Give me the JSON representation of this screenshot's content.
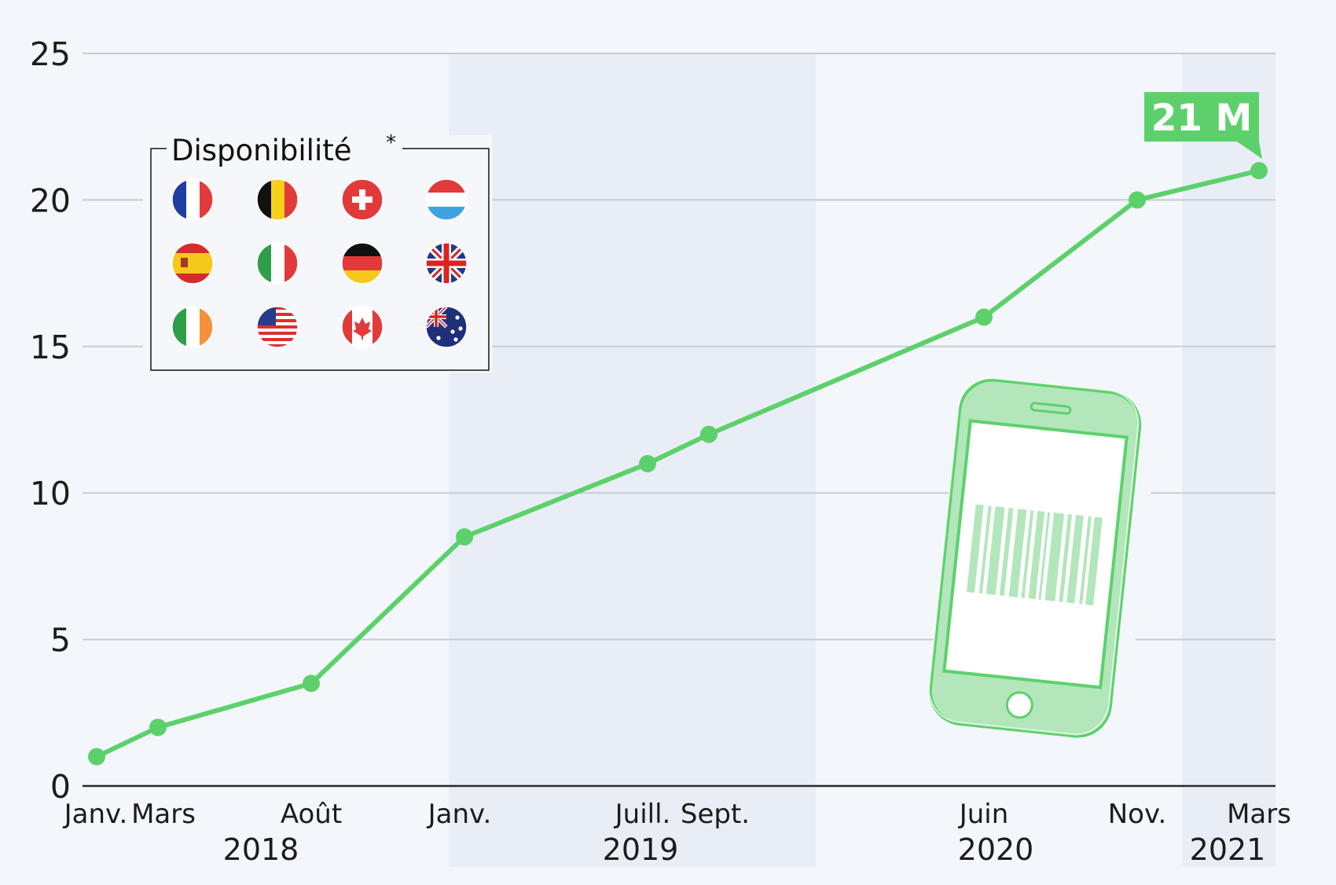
{
  "chart_data": {
    "type": "line",
    "x": [
      "Janv. 2018",
      "Mars 2018",
      "Août 2018",
      "Janv. 2019",
      "Juill. 2019",
      "Sept. 2019",
      "Juin 2020",
      "Nov. 2020",
      "Mars 2021"
    ],
    "series": [
      {
        "values": [
          1,
          2,
          3.5,
          8.5,
          11,
          12,
          16,
          20,
          21
        ]
      }
    ],
    "x_tick_labels": [
      "Janv.",
      "Mars",
      "Août",
      "Janv.",
      "Juill.",
      "Sept.",
      "Juin",
      "Nov.",
      "Mars"
    ],
    "year_labels": [
      "2018",
      "2019",
      "2020",
      "2021"
    ],
    "y_ticks": [
      0,
      5,
      10,
      15,
      20,
      25
    ],
    "ylim": [
      0,
      25
    ],
    "grid": true,
    "line_color": "#5cd16b",
    "callout": {
      "text": "21 M",
      "color": "#5cd16b"
    },
    "legend": {
      "title": "Disponibilité",
      "marker": "*",
      "position": "top-left",
      "flags": [
        "France",
        "Belgique",
        "Suisse",
        "Luxembourg",
        "Espagne",
        "Italie",
        "Allemagne",
        "Royaume-Uni",
        "Irlande",
        "États-Unis",
        "Canada",
        "Australie"
      ]
    },
    "illustration": "smartphone-barcode-icon"
  }
}
